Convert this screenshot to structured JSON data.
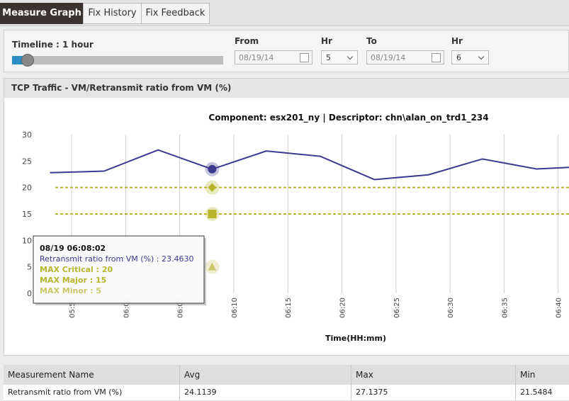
{
  "tabs": [
    "Measure Graph",
    "Fix History",
    "Fix Feedback"
  ],
  "filters": {
    "timeline_label": "Timeline : 1 hour",
    "from_label": "From",
    "from_date": "08/19/14",
    "from_hr_label": "Hr",
    "from_hr": "5",
    "to_label": "To",
    "to_date": "08/19/14",
    "to_hr_label": "Hr",
    "to_hr": "6"
  },
  "panel_title": "TCP Traffic - VM/Retransmit ratio from VM (%)",
  "chart_data": {
    "type": "line",
    "title": "Component: esx201_ny | Descriptor: chn\\alan_on_trd1_234",
    "x_label": "Time(HH:mm)",
    "x": [
      "05:53",
      "05:58",
      "06:03",
      "06:08",
      "06:13",
      "06:18",
      "06:23",
      "06:28",
      "06:33",
      "06:38",
      "06:41"
    ],
    "series": [
      {
        "name": "Retransmit ratio from VM (%)",
        "color": "#3b3a8f",
        "values": [
          22.8,
          23.1,
          27.1,
          23.463,
          26.9,
          25.9,
          21.5,
          22.4,
          25.4,
          23.5,
          23.8
        ]
      }
    ],
    "thresholds": [
      {
        "name": "MAX Critical",
        "value": 20,
        "color": "#b7b52c",
        "marker": "diamond",
        "dashed_line": true
      },
      {
        "name": "MAX Major",
        "value": 15,
        "color": "#b7b52c",
        "marker": "square",
        "dashed_line": true
      },
      {
        "name": "MAX Minor",
        "value": 5,
        "color": "#c9c86a",
        "marker": "triangle",
        "dashed_line": false
      }
    ],
    "xlim": [
      "05:51",
      "06:41"
    ],
    "xticks": [
      "05:55",
      "06:00",
      "06:05",
      "06:10",
      "06:15",
      "06:20",
      "06:25",
      "06:30",
      "06:35",
      "06:40"
    ],
    "ylim": [
      0,
      30
    ],
    "yticks": [
      0,
      5,
      10,
      15,
      20,
      25,
      30
    ],
    "grid": "x",
    "highlight_index": 3,
    "tooltip": {
      "time": "08/19  06:08:02",
      "lines": [
        "Retransmit ratio from VM (%) : 23.4630",
        "MAX Critical : 20",
        "MAX Major : 15",
        "MAX Minor : 5"
      ]
    }
  },
  "table": {
    "header": [
      "Measurement Name",
      "Avg",
      "Max",
      "Min"
    ],
    "rows": [
      [
        "Retransmit ratio from VM (%)",
        24.1139,
        27.1375,
        21.5484
      ]
    ]
  }
}
